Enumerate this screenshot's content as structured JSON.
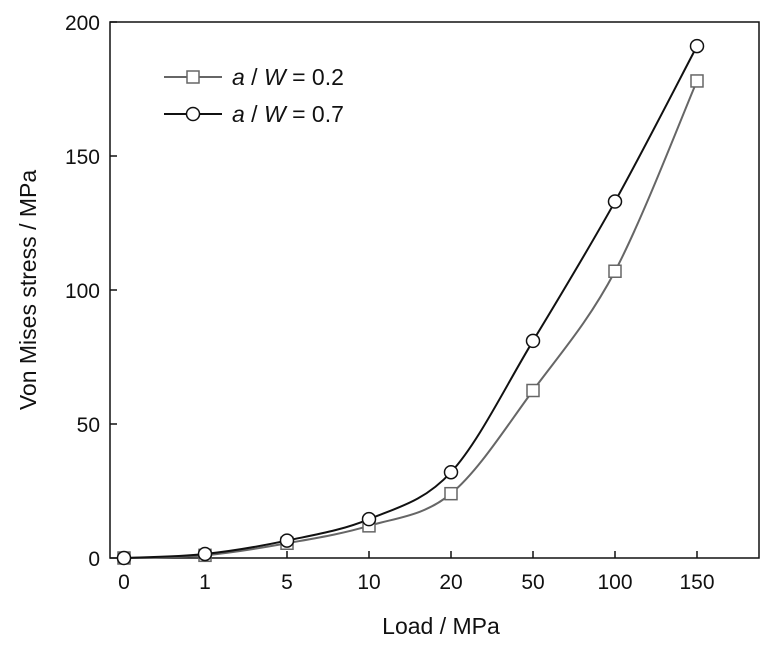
{
  "chart_data": {
    "type": "line",
    "title": "",
    "xlabel": "Load / MPa",
    "ylabel": "Von Mises stress / MPa",
    "x_tick_labels": [
      "0",
      "1",
      "5",
      "10",
      "20",
      "50",
      "100",
      "150"
    ],
    "y_ticks": [
      0,
      50,
      100,
      150,
      200
    ],
    "y_tick_labels": [
      "0",
      "50",
      "100",
      "150",
      "200"
    ],
    "ylim": [
      0,
      200
    ],
    "grid": false,
    "legend_position": "top-left",
    "x": [
      "0",
      "1",
      "5",
      "10",
      "20",
      "50",
      "100",
      "150"
    ],
    "series": [
      {
        "name_italic": "a",
        "name_mid": " / ",
        "name_italic2": "W",
        "name_rest": " = 0.2",
        "name": "a / W = 0.2",
        "marker": "square",
        "color": "#666666",
        "values": [
          0,
          1,
          5.5,
          12,
          24,
          62.5,
          107,
          178
        ]
      },
      {
        "name_italic": "a",
        "name_mid": " / ",
        "name_italic2": "W",
        "name_rest": " = 0.7",
        "name": "a / W = 0.7",
        "marker": "circle",
        "color": "#111111",
        "values": [
          0,
          1.5,
          6.5,
          14.5,
          32,
          81,
          133,
          191
        ]
      }
    ]
  }
}
